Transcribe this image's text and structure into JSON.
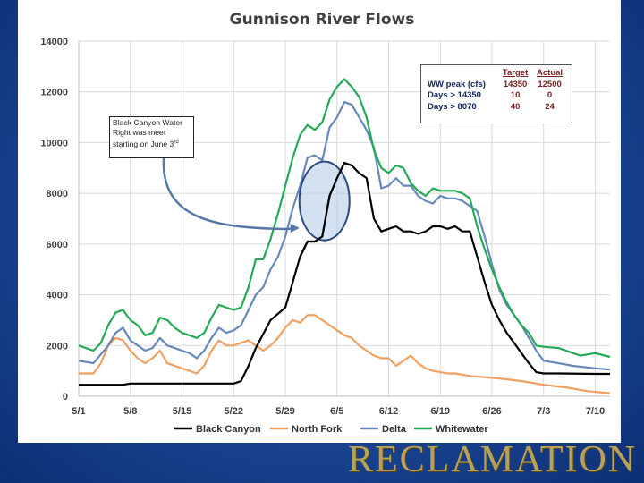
{
  "brand": {
    "name": "RECLAMATION"
  },
  "annotation": {
    "lines": [
      "Black Canyon Water",
      "Right was meet",
      "starting on June 3"
    ],
    "sup": "rd"
  },
  "summary_table": {
    "headers": [
      "",
      "Target",
      "Actual"
    ],
    "rows": [
      {
        "label": "WW peak (cfs)",
        "target": "14350",
        "actual": "12500"
      },
      {
        "label": "Days > 14350",
        "target": "10",
        "actual": "0"
      },
      {
        "label": "Days > 8070",
        "target": "40",
        "actual": "24"
      }
    ]
  },
  "colors": {
    "black_canyon": "#000000",
    "north_fork": "#f0a060",
    "delta": "#6688bb",
    "whitewater": "#22aa55",
    "highlight_fill": "#b8cde8",
    "highlight_stroke": "#2a4a80",
    "arrow": "#5577aa"
  },
  "chart_data": {
    "type": "line",
    "title": "Gunnison River Flows",
    "xlabel": "",
    "ylabel": "",
    "ylim": [
      0,
      14000
    ],
    "yticks": [
      0,
      2000,
      4000,
      6000,
      8000,
      10000,
      12000,
      14000
    ],
    "xlim": [
      0,
      72
    ],
    "xtick_positions": [
      0,
      7,
      14,
      21,
      28,
      35,
      42,
      49,
      56,
      63,
      70
    ],
    "xtick_labels": [
      "5/1",
      "5/8",
      "5/15",
      "5/22",
      "5/29",
      "6/5",
      "6/12",
      "6/19",
      "6/26",
      "7/3",
      "7/10"
    ],
    "grid": true,
    "legend_position": "bottom",
    "series": [
      {
        "name": "Black Canyon",
        "color_key": "black_canyon",
        "x": [
          0,
          3,
          6,
          7,
          10,
          13,
          16,
          19,
          21,
          22,
          23,
          24,
          26,
          28,
          29,
          30,
          31,
          32,
          33,
          34,
          35,
          36,
          37,
          38,
          39,
          40,
          41,
          42,
          43,
          44,
          45,
          46,
          47,
          48,
          49,
          50,
          51,
          52,
          53,
          54,
          55,
          56,
          57,
          58,
          59,
          60,
          61,
          62,
          63,
          65,
          70,
          72
        ],
        "values": [
          450,
          450,
          450,
          500,
          500,
          500,
          500,
          500,
          500,
          600,
          1200,
          1900,
          3000,
          3500,
          4500,
          5500,
          6100,
          6100,
          6300,
          7900,
          8600,
          9200,
          9100,
          8800,
          8600,
          7000,
          6500,
          6600,
          6700,
          6500,
          6500,
          6400,
          6500,
          6700,
          6700,
          6600,
          6700,
          6500,
          6500,
          5500,
          4500,
          3600,
          3000,
          2500,
          2100,
          1700,
          1300,
          950,
          900,
          900,
          880,
          880
        ]
      },
      {
        "name": "North Fork",
        "color_key": "north_fork",
        "x": [
          0,
          2,
          3,
          4,
          5,
          6,
          7,
          8,
          9,
          10,
          11,
          12,
          13,
          14,
          15,
          16,
          17,
          18,
          19,
          20,
          21,
          22,
          23,
          24,
          25,
          26,
          27,
          28,
          29,
          30,
          31,
          32,
          33,
          34,
          35,
          36,
          37,
          38,
          39,
          40,
          41,
          42,
          43,
          44,
          45,
          46,
          47,
          48,
          49,
          50,
          51,
          52,
          53,
          55,
          57,
          60,
          63,
          66,
          69,
          72
        ],
        "values": [
          900,
          900,
          1300,
          2000,
          2300,
          2200,
          1800,
          1500,
          1300,
          1500,
          1800,
          1300,
          1200,
          1100,
          1000,
          900,
          1200,
          1800,
          2200,
          2000,
          2000,
          2100,
          2200,
          2000,
          1800,
          2000,
          2300,
          2700,
          3000,
          2900,
          3200,
          3200,
          3000,
          2800,
          2600,
          2400,
          2300,
          2000,
          1800,
          1600,
          1500,
          1500,
          1200,
          1400,
          1600,
          1300,
          1100,
          1000,
          950,
          900,
          900,
          850,
          800,
          750,
          700,
          600,
          450,
          350,
          200,
          120
        ]
      },
      {
        "name": "Delta",
        "color_key": "delta",
        "x": [
          0,
          2,
          4,
          5,
          6,
          7,
          8,
          9,
          10,
          11,
          12,
          13,
          14,
          15,
          16,
          17,
          18,
          19,
          20,
          21,
          22,
          23,
          24,
          25,
          26,
          27,
          28,
          29,
          30,
          31,
          32,
          33,
          34,
          35,
          36,
          37,
          38,
          39,
          40,
          41,
          42,
          43,
          44,
          45,
          46,
          47,
          48,
          49,
          50,
          51,
          52,
          53,
          54,
          55,
          56,
          57,
          58,
          59,
          60,
          61,
          62,
          63,
          65,
          67,
          70,
          72
        ],
        "values": [
          1400,
          1300,
          2000,
          2500,
          2700,
          2200,
          2000,
          1800,
          1900,
          2300,
          2000,
          1900,
          1800,
          1700,
          1500,
          1800,
          2300,
          2700,
          2500,
          2600,
          2800,
          3400,
          4000,
          4300,
          5000,
          5500,
          6300,
          7400,
          8300,
          9400,
          9500,
          9300,
          10600,
          11000,
          11600,
          11500,
          11000,
          10500,
          9800,
          8200,
          8300,
          8600,
          8300,
          8300,
          7900,
          7700,
          7600,
          7900,
          7800,
          7800,
          7700,
          7500,
          7300,
          6300,
          5200,
          4200,
          3600,
          3200,
          2800,
          2300,
          1800,
          1400,
          1300,
          1200,
          1100,
          1050
        ]
      },
      {
        "name": "Whitewater",
        "color_key": "whitewater",
        "x": [
          0,
          2,
          3,
          4,
          5,
          6,
          7,
          8,
          9,
          10,
          11,
          12,
          13,
          14,
          15,
          16,
          17,
          18,
          19,
          20,
          21,
          22,
          23,
          24,
          25,
          26,
          27,
          28,
          29,
          30,
          31,
          32,
          33,
          34,
          35,
          36,
          37,
          38,
          39,
          40,
          41,
          42,
          43,
          44,
          45,
          46,
          47,
          48,
          49,
          50,
          51,
          52,
          53,
          54,
          55,
          56,
          57,
          58,
          59,
          60,
          61,
          62,
          63,
          65,
          67,
          68,
          70,
          72
        ],
        "values": [
          2000,
          1800,
          2100,
          2800,
          3300,
          3400,
          3000,
          2800,
          2400,
          2500,
          3100,
          3000,
          2700,
          2500,
          2400,
          2300,
          2500,
          3100,
          3600,
          3500,
          3400,
          3500,
          4300,
          5400,
          5400,
          6200,
          7200,
          8300,
          9400,
          10300,
          10700,
          10500,
          10800,
          11700,
          12200,
          12500,
          12200,
          11800,
          11000,
          9700,
          9000,
          8800,
          9100,
          9000,
          8400,
          8100,
          7900,
          8200,
          8100,
          8100,
          8100,
          8000,
          7800,
          6700,
          5800,
          5000,
          4300,
          3700,
          3200,
          2800,
          2500,
          2000,
          1950,
          1900,
          1700,
          1600,
          1700,
          1550
        ]
      }
    ]
  }
}
